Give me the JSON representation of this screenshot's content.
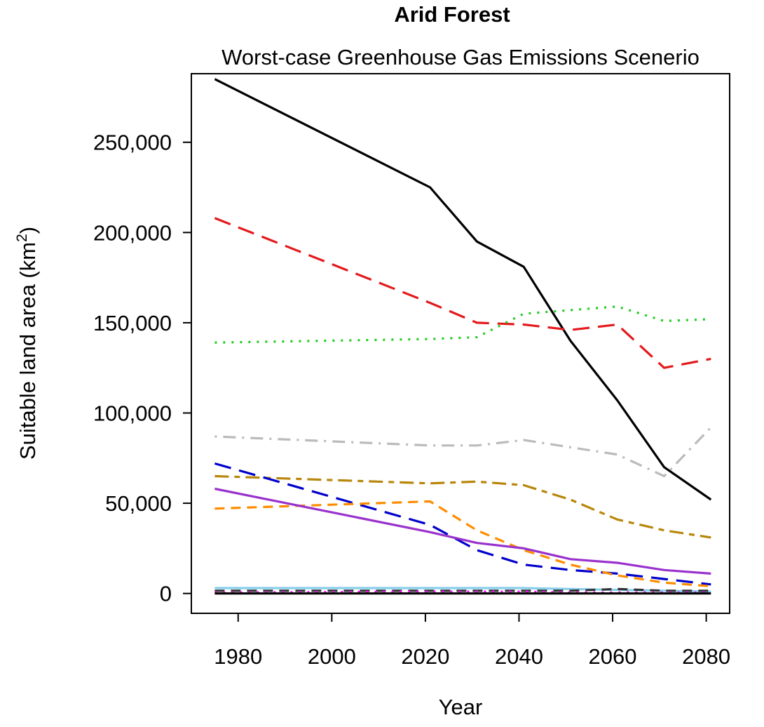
{
  "chart_data": {
    "type": "line",
    "title": "Arid Forest",
    "subtitle": "Worst-case Greenhouse Gas Emissions Scenerio",
    "xlabel": "Year",
    "ylabel": "Suitable land area (km",
    "ylabel_sup": "2",
    "ylabel_close": ")",
    "xlim": [
      1970,
      2085
    ],
    "ylim": [
      -11000,
      288000
    ],
    "xticks": [
      1980,
      2000,
      2020,
      2040,
      2060,
      2080
    ],
    "xtick_labels": [
      "1980",
      "2000",
      "2020",
      "2040",
      "2060",
      "2080"
    ],
    "yticks": [
      0,
      50000,
      100000,
      150000,
      200000,
      250000
    ],
    "ytick_labels": [
      "0",
      "50,000",
      "100,000",
      "150,000",
      "200,000",
      "250,000"
    ],
    "grid": false,
    "series": [
      {
        "color": "#000000",
        "dash": "solid",
        "x": [
          1975,
          2021,
          2031,
          2041,
          2051,
          2061,
          2071,
          2081
        ],
        "y": [
          285000,
          225000,
          195000,
          181000,
          140000,
          107000,
          70000,
          52000
        ]
      },
      {
        "color": "#e31a1c",
        "dash": "longdash",
        "x": [
          1975,
          2021,
          2031,
          2041,
          2051,
          2061,
          2071,
          2081
        ],
        "y": [
          208000,
          161000,
          150000,
          149000,
          146000,
          149000,
          125000,
          130000
        ]
      },
      {
        "color": "#22cc22",
        "dash": "dotted",
        "x": [
          1975,
          2021,
          2031,
          2041,
          2051,
          2061,
          2071,
          2081
        ],
        "y": [
          139000,
          141000,
          142000,
          155000,
          157000,
          159000,
          151000,
          152000
        ]
      },
      {
        "color": "#bbbbbb",
        "dash": "dotdash",
        "x": [
          1975,
          2021,
          2031,
          2041,
          2051,
          2061,
          2071,
          2081
        ],
        "y": [
          87000,
          82000,
          82000,
          85000,
          81000,
          77000,
          65000,
          92000
        ]
      },
      {
        "color": "#b8860b",
        "dash": "twodash",
        "x": [
          1975,
          2021,
          2031,
          2041,
          2051,
          2061,
          2071,
          2081
        ],
        "y": [
          65000,
          61000,
          62000,
          60000,
          52000,
          41000,
          35000,
          31000
        ]
      },
      {
        "color": "#0000cc",
        "dash": "longdash",
        "x": [
          1975,
          2021,
          2031,
          2041,
          2051,
          2061,
          2071,
          2081
        ],
        "y": [
          72000,
          38000,
          24000,
          16000,
          13000,
          11000,
          8000,
          5000
        ]
      },
      {
        "color": "#ff8c00",
        "dash": "dashed",
        "x": [
          1975,
          2021,
          2031,
          2041,
          2051,
          2061,
          2071,
          2081
        ],
        "y": [
          47000,
          51000,
          35000,
          24000,
          16000,
          10000,
          6000,
          4000
        ]
      },
      {
        "color": "#9932cc",
        "dash": "solid",
        "x": [
          1975,
          2021,
          2031,
          2041,
          2051,
          2061,
          2071,
          2081
        ],
        "y": [
          58000,
          34000,
          28000,
          25000,
          19000,
          17000,
          13000,
          11000
        ]
      },
      {
        "color": "#87ceeb",
        "dash": "solid",
        "x": [
          1975,
          2021,
          2031,
          2041,
          2051,
          2061,
          2071,
          2081
        ],
        "y": [
          3000,
          3000,
          3000,
          3000,
          2500,
          2000,
          1500,
          1000
        ]
      },
      {
        "color": "#333333",
        "dash": "dashed",
        "x": [
          1975,
          2021,
          2031,
          2041,
          2051,
          2061,
          2071,
          2081
        ],
        "y": [
          1500,
          1500,
          1500,
          1500,
          1500,
          2500,
          1500,
          1500
        ]
      },
      {
        "color": "#ff00ff",
        "dash": "dotted",
        "x": [
          1975,
          2021,
          2031,
          2041,
          2051,
          2061,
          2071,
          2081
        ],
        "y": [
          500,
          1000,
          1000,
          1000,
          500,
          500,
          500,
          500
        ]
      },
      {
        "color": "#000000",
        "dash": "solid",
        "x": [
          1975,
          2021,
          2031,
          2041,
          2051,
          2061,
          2071,
          2081
        ],
        "y": [
          0,
          0,
          0,
          0,
          0,
          0,
          0,
          0
        ]
      }
    ]
  }
}
